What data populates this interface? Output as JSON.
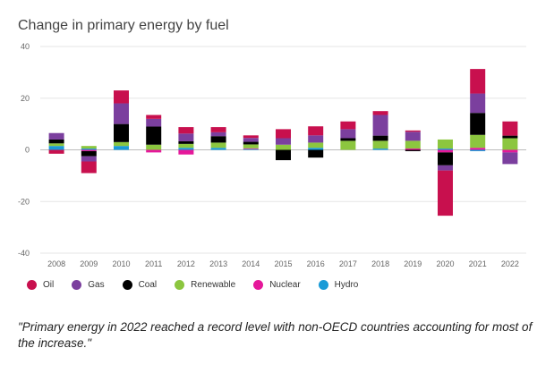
{
  "chart_data": {
    "type": "bar",
    "stacked": true,
    "title": "Change in primary energy by fuel",
    "xlabel": "",
    "ylabel": "",
    "ylim": [
      -40,
      40
    ],
    "yticks": [
      40,
      20,
      0,
      -20,
      -40
    ],
    "categories": [
      "2008",
      "2009",
      "2010",
      "2011",
      "2012",
      "2013",
      "2014",
      "2015",
      "2016",
      "2017",
      "2018",
      "2019",
      "2020",
      "2021",
      "2022"
    ],
    "series": [
      {
        "name": "Hydro",
        "color": "#1a9bd7",
        "values": [
          1.5,
          0.5,
          1.5,
          0,
          0.8,
          0.8,
          0.3,
          0,
          0.8,
          0,
          0.5,
          0,
          0.5,
          -0.5,
          0
        ]
      },
      {
        "name": "Nuclear",
        "color": "#e5189a",
        "values": [
          0,
          -0.5,
          0,
          -1.0,
          -1.8,
          0,
          0.3,
          0,
          0,
          0,
          0,
          0.5,
          -1.0,
          0.8,
          -1.0
        ]
      },
      {
        "name": "Renewable",
        "color": "#8cc63f",
        "values": [
          1.0,
          1.0,
          1.5,
          2.0,
          1.5,
          2.0,
          1.5,
          2.0,
          2.0,
          3.5,
          3.0,
          3.0,
          3.5,
          5.0,
          4.5
        ]
      },
      {
        "name": "Coal",
        "color": "#000000",
        "values": [
          1.5,
          -2.0,
          7.0,
          7.0,
          1.0,
          2.5,
          1.0,
          -4.0,
          -3.0,
          1.0,
          2.0,
          -0.5,
          -5.0,
          8.5,
          1.0
        ]
      },
      {
        "name": "Gas",
        "color": "#7b3f9e",
        "values": [
          2.5,
          -2.0,
          8.0,
          3.0,
          3.0,
          1.5,
          1.5,
          2.5,
          2.8,
          3.5,
          8.0,
          3.5,
          -2.0,
          7.5,
          -4.5
        ]
      },
      {
        "name": "Oil",
        "color": "#c8104e",
        "values": [
          -1.5,
          -4.5,
          5.0,
          1.5,
          2.5,
          2.0,
          1.0,
          3.5,
          3.5,
          3.0,
          1.5,
          0.5,
          -17.5,
          9.5,
          5.5
        ]
      }
    ]
  },
  "legend": [
    {
      "label": "Oil",
      "color": "#c8104e"
    },
    {
      "label": "Gas",
      "color": "#7b3f9e"
    },
    {
      "label": "Coal",
      "color": "#000000"
    },
    {
      "label": "Renewable",
      "color": "#8cc63f"
    },
    {
      "label": "Nuclear",
      "color": "#e5189a"
    },
    {
      "label": "Hydro",
      "color": "#1a9bd7"
    }
  ],
  "caption": "\"Primary energy in 2022 reached a record level with non-OECD countries accounting for most of the increase.\""
}
